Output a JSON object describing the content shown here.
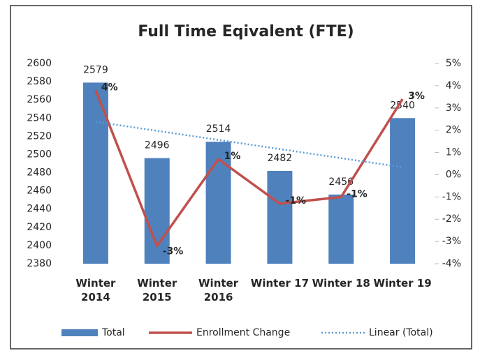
{
  "chart_data": {
    "type": "bar",
    "title": "Full Time Eqivalent (FTE)",
    "categories": [
      "Winter 2014",
      "Winter 2015",
      "Winter 2016",
      "Winter 17",
      "Winter 18",
      "Winter 19"
    ],
    "series": [
      {
        "name": "Total",
        "type": "bar",
        "color": "#4f81bd",
        "values": [
          2579,
          2496,
          2514,
          2482,
          2456,
          2540
        ]
      },
      {
        "name": "Enrollment Change",
        "type": "line",
        "axis": "y2",
        "color": "#c0504d",
        "values": [
          3.8,
          -3.2,
          0.7,
          -1.3,
          -1.0,
          3.4
        ],
        "value_labels": [
          "4%",
          "-3%",
          "1%",
          "-1%",
          "-1%",
          "3%"
        ]
      },
      {
        "name": "Linear (Total)",
        "type": "line",
        "dash": "dotted",
        "color": "#5b9bd5",
        "values": [
          2536,
          2526,
          2516,
          2506,
          2496,
          2486
        ]
      }
    ],
    "ylim": [
      2380,
      2600
    ],
    "yticks": [
      2380,
      2400,
      2420,
      2440,
      2460,
      2480,
      2500,
      2520,
      2540,
      2560,
      2580,
      2600
    ],
    "y2lim": [
      -4,
      5
    ],
    "y2ticks": [
      {
        "value": -4,
        "label": "-4%"
      },
      {
        "value": -3,
        "label": "-3%"
      },
      {
        "value": -2,
        "label": "-2%"
      },
      {
        "value": -1,
        "label": "-1%"
      },
      {
        "value": 0,
        "label": "0%"
      },
      {
        "value": 1,
        "label": "1%"
      },
      {
        "value": 2,
        "label": "2%"
      },
      {
        "value": 3,
        "label": "3%"
      },
      {
        "value": 4,
        "label": "4%"
      },
      {
        "value": 5,
        "label": "5%"
      }
    ],
    "grid": false,
    "legend": "bottom"
  }
}
